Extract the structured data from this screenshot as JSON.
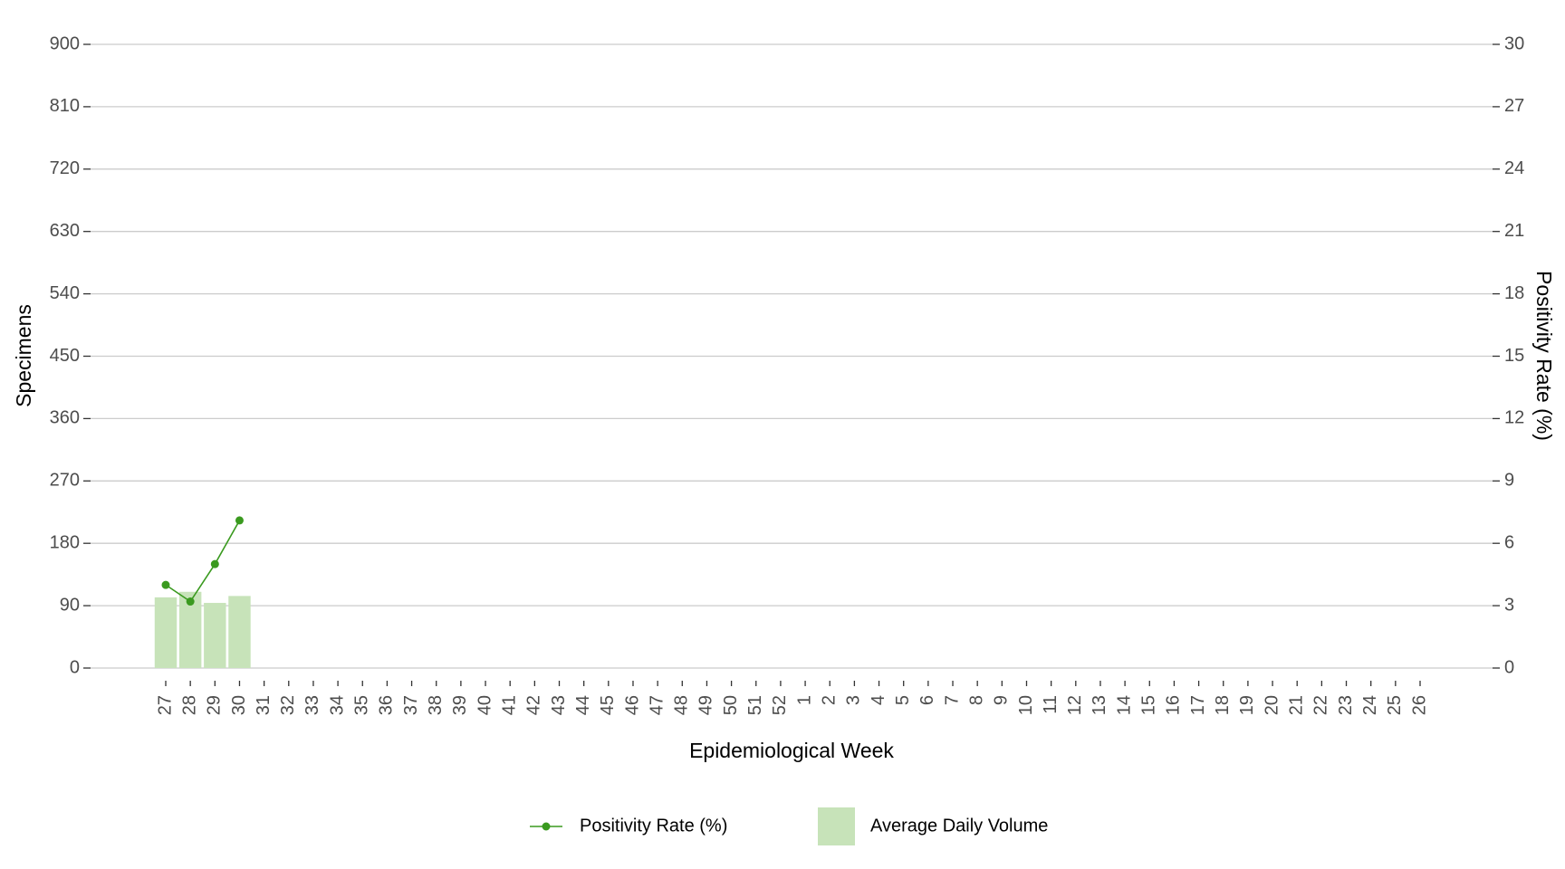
{
  "chart_data": {
    "type": "bar",
    "x_label": "Epidemiological Week",
    "y_label": "Specimens",
    "y2_label": "Positivity Rate (%)",
    "categories": [
      "27",
      "28",
      "29",
      "30",
      "31",
      "32",
      "33",
      "34",
      "35",
      "36",
      "37",
      "38",
      "39",
      "40",
      "41",
      "42",
      "43",
      "44",
      "45",
      "46",
      "47",
      "48",
      "49",
      "50",
      "51",
      "52",
      "1",
      "2",
      "3",
      "4",
      "5",
      "6",
      "7",
      "8",
      "9",
      "10",
      "11",
      "12",
      "13",
      "14",
      "15",
      "16",
      "17",
      "18",
      "19",
      "20",
      "21",
      "22",
      "23",
      "24",
      "25",
      "26"
    ],
    "series": [
      {
        "name": "Positivity Rate (%)",
        "type": "line",
        "axis": "y2",
        "color": "#3a9a1f",
        "values": [
          4.0,
          3.2,
          5.0,
          7.1,
          null,
          null,
          null,
          null,
          null,
          null,
          null,
          null,
          null,
          null,
          null,
          null,
          null,
          null,
          null,
          null,
          null,
          null,
          null,
          null,
          null,
          null,
          null,
          null,
          null,
          null,
          null,
          null,
          null,
          null,
          null,
          null,
          null,
          null,
          null,
          null,
          null,
          null,
          null,
          null,
          null,
          null,
          null,
          null,
          null,
          null,
          null,
          null
        ]
      },
      {
        "name": "Average Daily Volume",
        "type": "bar",
        "color": "#c7e3b9",
        "values": [
          102,
          110,
          94,
          104,
          null,
          null,
          null,
          null,
          null,
          null,
          null,
          null,
          null,
          null,
          null,
          null,
          null,
          null,
          null,
          null,
          null,
          null,
          null,
          null,
          null,
          null,
          null,
          null,
          null,
          null,
          null,
          null,
          null,
          null,
          null,
          null,
          null,
          null,
          null,
          null,
          null,
          null,
          null,
          null,
          null,
          null,
          null,
          null,
          null,
          null,
          null,
          null
        ]
      }
    ],
    "ylim": [
      0,
      900
    ],
    "yticks": [
      0,
      90,
      180,
      270,
      360,
      450,
      540,
      630,
      720,
      810,
      900
    ],
    "y2lim": [
      0,
      30
    ],
    "y2ticks": [
      0,
      3,
      6,
      9,
      12,
      15,
      18,
      21,
      24,
      27,
      30
    ],
    "grid": true,
    "legend": "bottom"
  }
}
